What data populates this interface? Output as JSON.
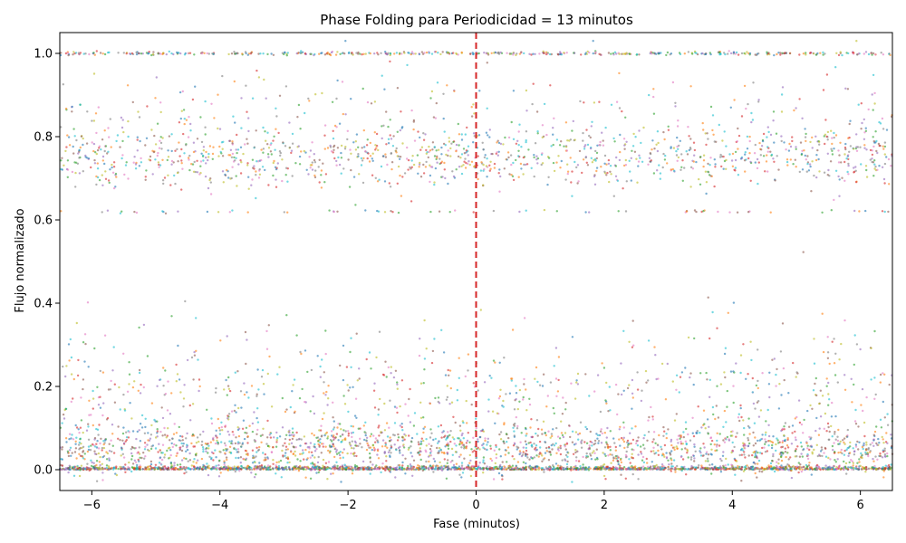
{
  "chart_data": {
    "type": "scatter",
    "title": "Phase Folding para Periodicidad = 13 minutos",
    "xlabel": "Fase (minutos)",
    "ylabel": "Flujo normalizado",
    "xlim": [
      -6.5,
      6.5
    ],
    "ylim": [
      -0.05,
      1.05
    ],
    "x_ticks": [
      -6,
      -4,
      -2,
      0,
      2,
      4,
      6
    ],
    "x_tick_labels": [
      "−6",
      "−4",
      "−2",
      "0",
      "2",
      "4",
      "6"
    ],
    "y_ticks": [
      0.0,
      0.2,
      0.4,
      0.6,
      0.8,
      1.0
    ],
    "y_tick_labels": [
      "0.0",
      "0.2",
      "0.4",
      "0.6",
      "0.8",
      "1.0"
    ],
    "grid": false,
    "legend": "none",
    "reference_line": {
      "x": 0,
      "color": "#d62728",
      "style": "dashed"
    },
    "point_colors": [
      "#1f77b4",
      "#ff7f0e",
      "#2ca02c",
      "#d62728",
      "#9467bd",
      "#8c564b",
      "#e377c2",
      "#7f7f7f",
      "#bcbd22",
      "#17becf"
    ],
    "point_clusters": [
      {
        "y_center": 0.0,
        "y_spread": 0.004,
        "share": 0.3
      },
      {
        "y_center": 0.05,
        "y_spread": 0.03,
        "share": 0.28
      },
      {
        "y_center": 0.18,
        "y_spread": 0.08,
        "share": 0.12
      },
      {
        "y_center": 0.75,
        "y_spread": 0.035,
        "share": 0.17
      },
      {
        "y_center": 0.84,
        "y_spread": 0.06,
        "share": 0.05
      },
      {
        "y_center": 1.0,
        "y_spread": 0.002,
        "share": 0.07
      },
      {
        "y_center": 0.62,
        "y_spread": 0.002,
        "share": 0.01
      }
    ]
  }
}
